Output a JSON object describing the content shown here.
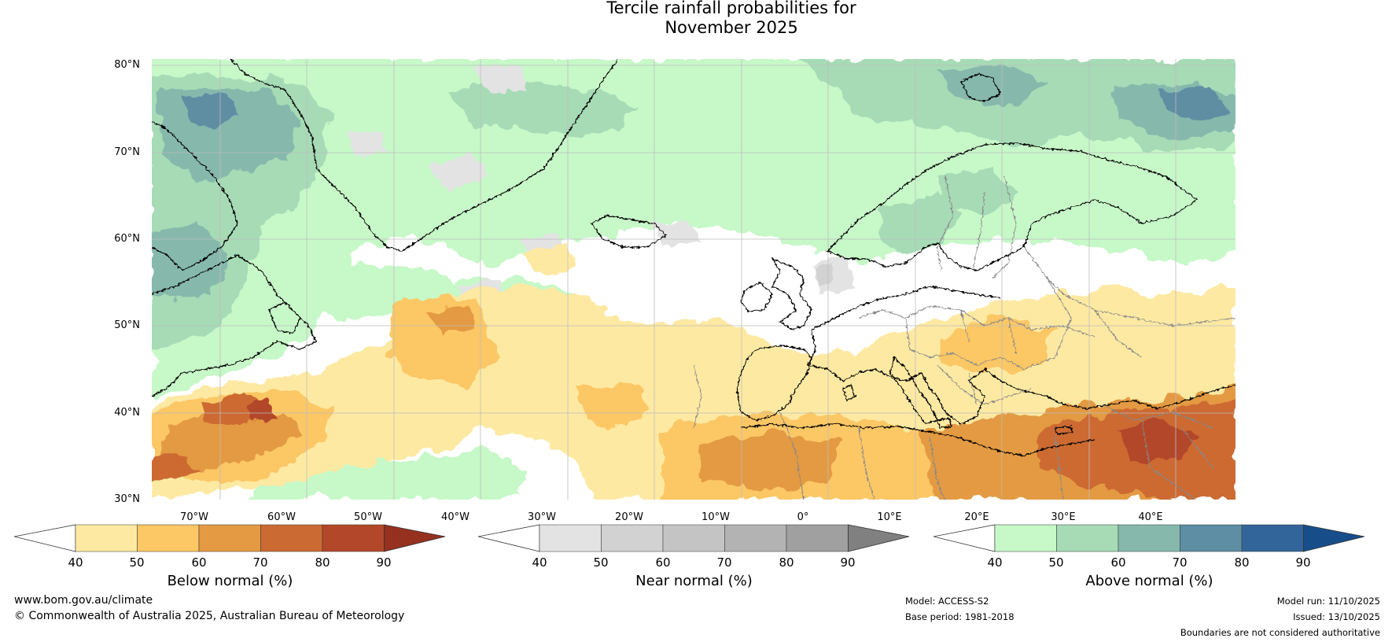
{
  "title": {
    "line1": "Tercile rainfall probabilities for",
    "line2": "November 2025"
  },
  "map": {
    "latitude_labels": [
      "80°N",
      "70°N",
      "60°N",
      "50°N",
      "40°N",
      "30°N"
    ],
    "longitude_labels": [
      "70°W",
      "60°W",
      "50°W",
      "40°W",
      "30°W",
      "20°W",
      "10°W",
      "0°",
      "10°E",
      "20°E",
      "30°E",
      "40°E"
    ],
    "extent": {
      "lon_min": -78,
      "lon_max": 47,
      "lat_min": 30,
      "lat_max": 81
    },
    "colors": {
      "below": [
        "#fde9a2",
        "#fcc765",
        "#e39a42",
        "#cc6a33",
        "#b3472a",
        "#96301f"
      ],
      "near": [
        "#e3e3e3",
        "#d2d2d2",
        "#c4c4c4",
        "#b3b3b3",
        "#a0a0a0",
        "#808080"
      ],
      "above": [
        "#c7f8c8",
        "#a6dbb6",
        "#86b9ac",
        "#5e8ea3",
        "#32659a",
        "#174e8a"
      ],
      "coast": "#000000",
      "borders": "#888888",
      "grid": "#bdbdbd"
    }
  },
  "legends": [
    {
      "id": "below",
      "title": "Below normal (%)",
      "ticks": [
        "40",
        "50",
        "60",
        "70",
        "80",
        "90"
      ],
      "colors": [
        "#fde9a2",
        "#fcc765",
        "#e39a42",
        "#cc6a33",
        "#b3472a"
      ],
      "extend_color": "#96301f"
    },
    {
      "id": "near",
      "title": "Near normal (%)",
      "ticks": [
        "40",
        "50",
        "60",
        "70",
        "80",
        "90"
      ],
      "colors": [
        "#e3e3e3",
        "#d2d2d2",
        "#c4c4c4",
        "#b3b3b3",
        "#a0a0a0"
      ],
      "extend_color": "#808080"
    },
    {
      "id": "above",
      "title": "Above normal (%)",
      "ticks": [
        "40",
        "50",
        "60",
        "70",
        "80",
        "90"
      ],
      "colors": [
        "#c7f8c8",
        "#a6dbb6",
        "#86b9ac",
        "#5e8ea3",
        "#32659a"
      ],
      "extend_color": "#174e8a"
    }
  ],
  "footer": {
    "website": "www.bom.gov.au/climate",
    "copyright": "© Commonwealth of Australia 2025, Australian Bureau of Meteorology",
    "model": "Model: ACCESS-S2",
    "base_period": "Base period: 1981-2018",
    "model_run": "Model run: 11/10/2025",
    "issued": "Issued: 13/10/2025",
    "disclaimer": "Boundaries are not considered authoritative"
  }
}
